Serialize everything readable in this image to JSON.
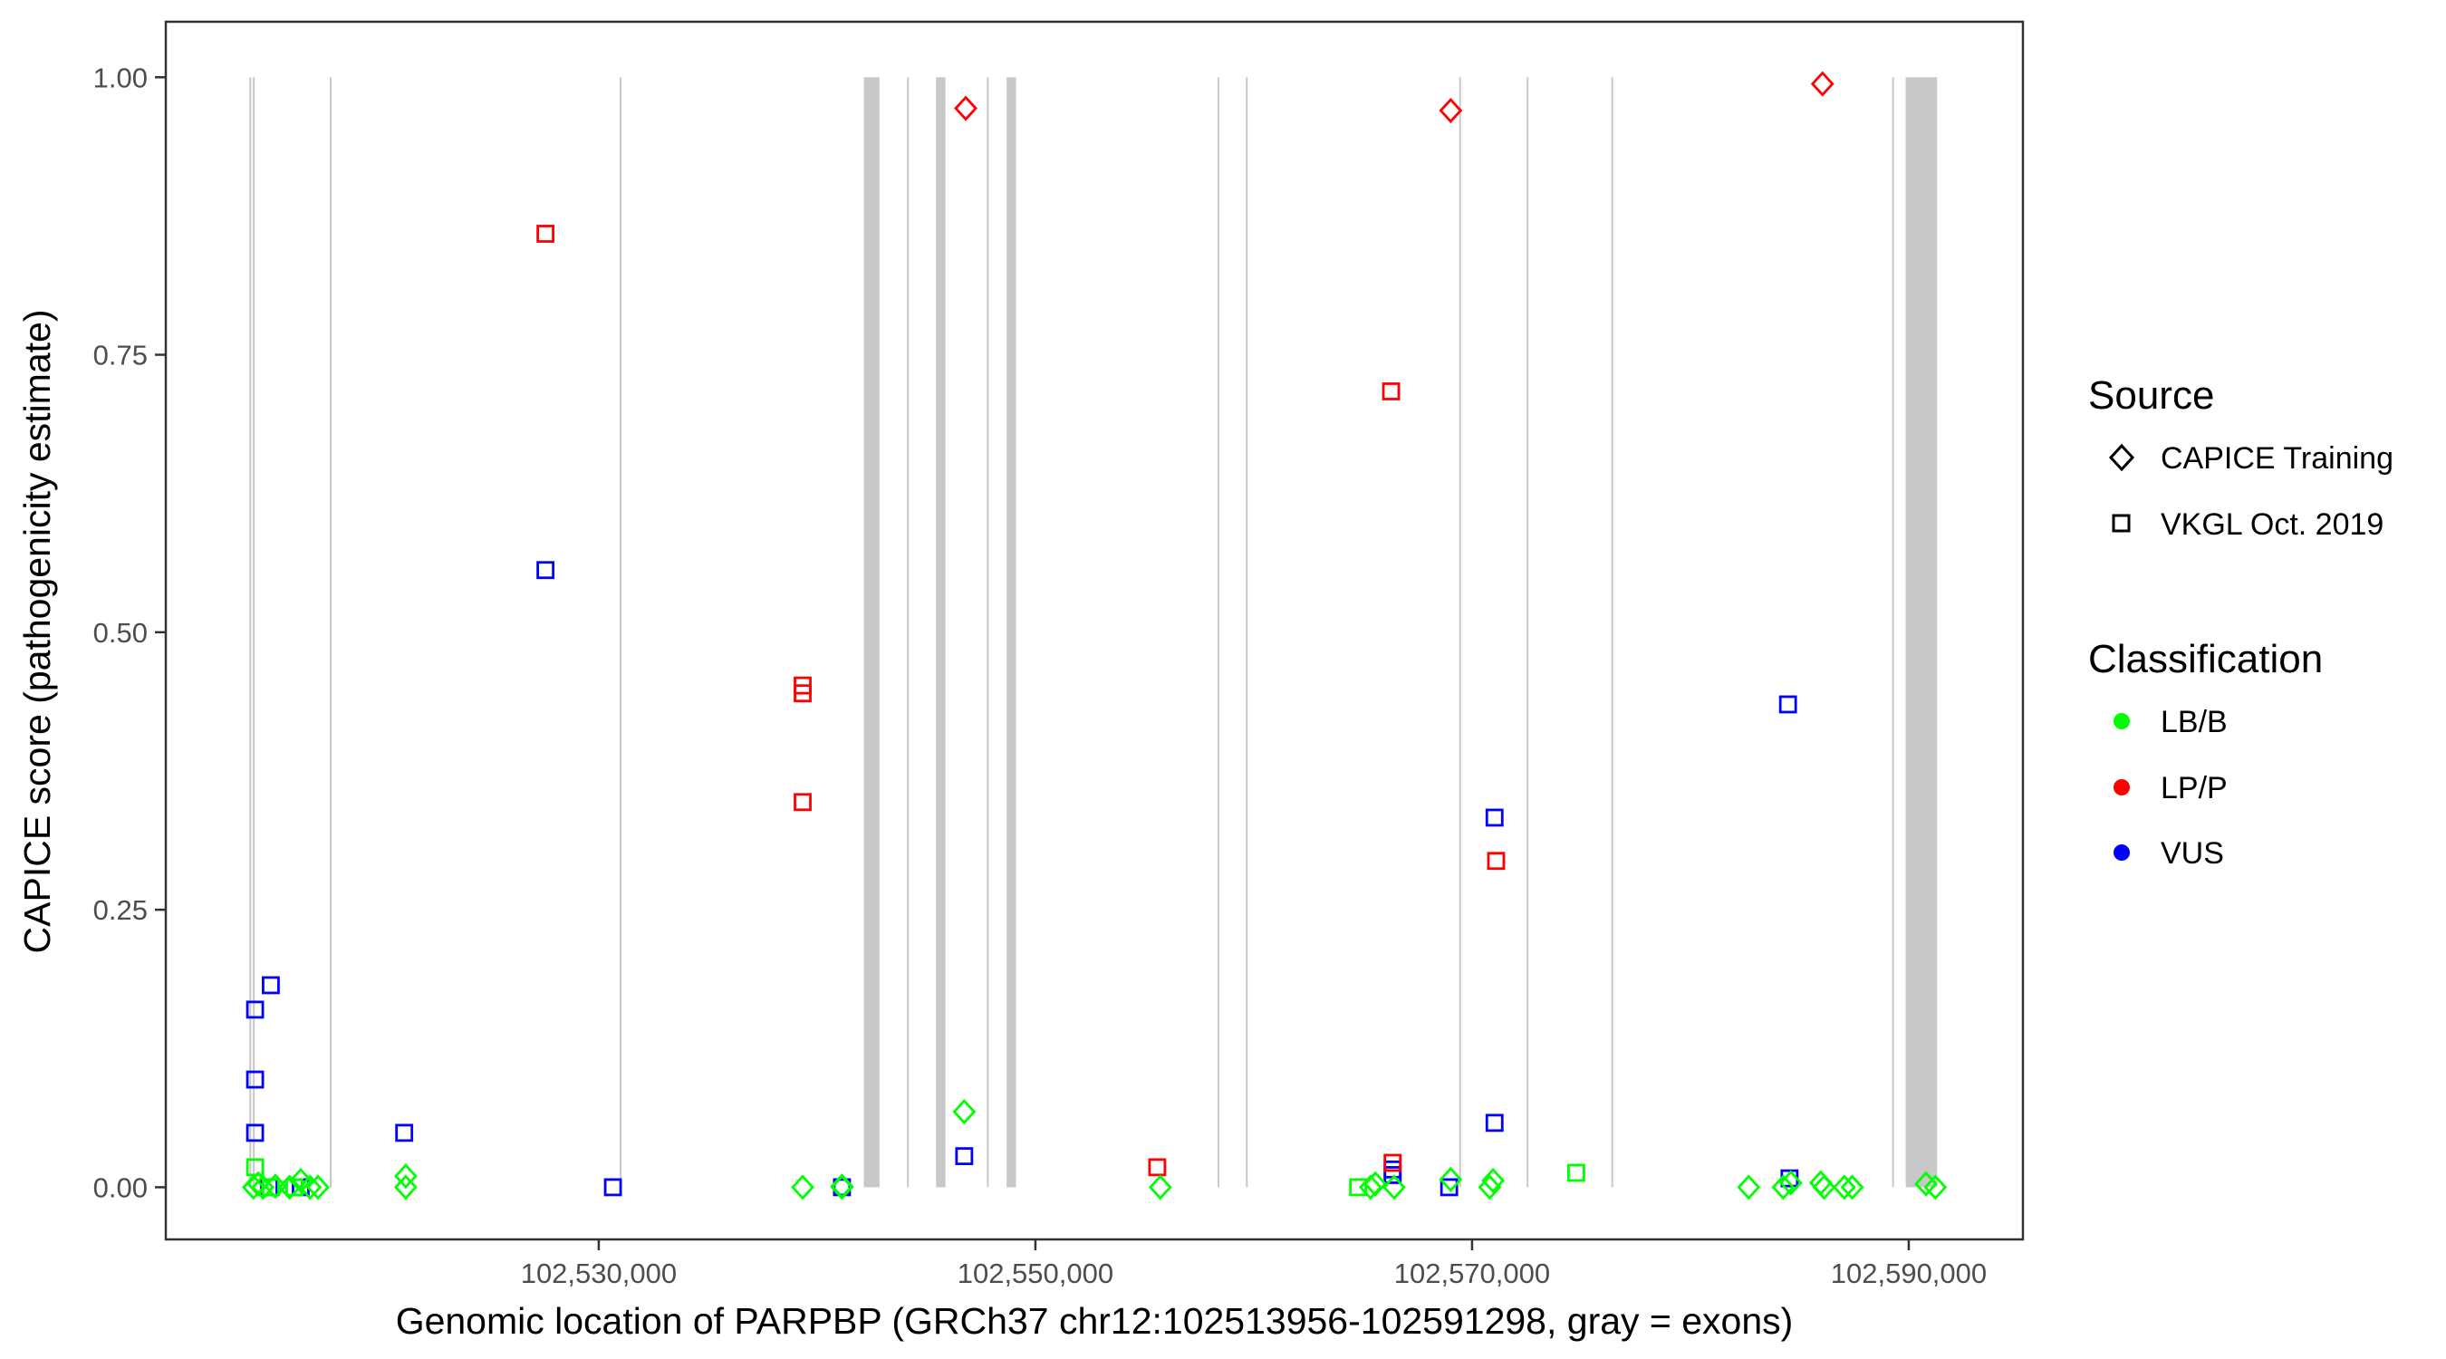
{
  "chart_data": {
    "type": "scatter",
    "xlabel": "Genomic location of PARPBP (GRCh37 chr12:102513956-102591298, gray = exons)",
    "ylabel": "CAPICE score (pathogenicity estimate)",
    "xlim": [
      102510170,
      102595230
    ],
    "ylim": [
      -0.047,
      1.05
    ],
    "x_ticks": [
      102530000,
      102550000,
      102570000,
      102590000
    ],
    "x_tick_labels": [
      "102,530,000",
      "102,550,000",
      "102,570,000",
      "102,590,000"
    ],
    "y_ticks": [
      0,
      0.25,
      0.5,
      0.75,
      1.0
    ],
    "y_tick_labels": [
      "0.00",
      "0.25",
      "0.50",
      "0.75",
      "1.00"
    ],
    "grid": false,
    "exon_color": "#c8c8c8",
    "exons": [
      [
        102514000,
        102514080
      ],
      [
        102514160,
        102514230
      ],
      [
        102517680,
        102517760
      ],
      [
        102530960,
        102531040
      ],
      [
        102542140,
        102542860
      ],
      [
        102544120,
        102544200
      ],
      [
        102545450,
        102545880
      ],
      [
        102547780,
        102547860
      ],
      [
        102548680,
        102549110
      ],
      [
        102558340,
        102558420
      ],
      [
        102559640,
        102559720
      ],
      [
        102569410,
        102569490
      ],
      [
        102572500,
        102572580
      ],
      [
        102576380,
        102576460
      ],
      [
        102589240,
        102589320
      ],
      [
        102589860,
        102591298
      ]
    ],
    "legend": {
      "placement": "right",
      "source": {
        "title": "Source",
        "items": [
          {
            "label": "CAPICE Training",
            "shape": "diamond"
          },
          {
            "label": "VKGL Oct. 2019",
            "shape": "square"
          }
        ]
      },
      "classification": {
        "title": "Classification",
        "items": [
          {
            "label": "LB/B",
            "color": "#00ff00"
          },
          {
            "label": "LP/P",
            "color": "#ff0000"
          },
          {
            "label": "VUS",
            "color": "#0000ff"
          }
        ]
      }
    },
    "series": [
      {
        "source": "VKGL Oct. 2019",
        "classification": "VUS",
        "points": [
          [
            102514260,
            0.16
          ],
          [
            102514260,
            0.097
          ],
          [
            102514260,
            0.049
          ],
          [
            102514980,
            0.182
          ],
          [
            102516350,
            0.0
          ],
          [
            102514900,
            0.0
          ],
          [
            102521090,
            0.049
          ],
          [
            102527560,
            0.556
          ],
          [
            102530650,
            0.0
          ],
          [
            102541140,
            0.0
          ],
          [
            102546740,
            0.028
          ],
          [
            102566360,
            0.016
          ],
          [
            102566360,
            0.011
          ],
          [
            102568950,
            0.0
          ],
          [
            102571030,
            0.333
          ],
          [
            102571030,
            0.058
          ],
          [
            102584470,
            0.435
          ],
          [
            102584540,
            0.008
          ]
        ]
      },
      {
        "source": "VKGL Oct. 2019",
        "classification": "LP/P",
        "points": [
          [
            102527560,
            0.859
          ],
          [
            102539340,
            0.452
          ],
          [
            102539340,
            0.445
          ],
          [
            102539340,
            0.347
          ],
          [
            102555580,
            0.018
          ],
          [
            102566290,
            0.717
          ],
          [
            102566360,
            0.022
          ],
          [
            102571100,
            0.294
          ]
        ]
      },
      {
        "source": "VKGL Oct. 2019",
        "classification": "LB/B",
        "points": [
          [
            102514260,
            0.018
          ],
          [
            102514980,
            0.0
          ],
          [
            102516060,
            0.0
          ],
          [
            102564780,
            0.0
          ],
          [
            102574770,
            0.013
          ]
        ]
      },
      {
        "source": "CAPICE Training",
        "classification": "LP/P",
        "points": [
          [
            102546810,
            0.972
          ],
          [
            102569020,
            0.97
          ],
          [
            102586050,
            0.994
          ]
        ]
      },
      {
        "source": "CAPICE Training",
        "classification": "LB/B",
        "points": [
          [
            102514190,
            0.0
          ],
          [
            102514400,
            0.003
          ],
          [
            102514620,
            0.0
          ],
          [
            102515190,
            0.001
          ],
          [
            102515840,
            0.0
          ],
          [
            102516350,
            0.006
          ],
          [
            102516780,
            0.0
          ],
          [
            102517140,
            0.0
          ],
          [
            102521160,
            0.01
          ],
          [
            102521160,
            0.0
          ],
          [
            102539340,
            0.0
          ],
          [
            102541140,
            0.001
          ],
          [
            102541140,
            0.0
          ],
          [
            102546740,
            0.068
          ],
          [
            102555720,
            0.0
          ],
          [
            102565350,
            0.0
          ],
          [
            102565570,
            0.003
          ],
          [
            102566430,
            0.0
          ],
          [
            102569020,
            0.007
          ],
          [
            102570810,
            0.0
          ],
          [
            102570960,
            0.006
          ],
          [
            102582670,
            0.0
          ],
          [
            102584250,
            0.0
          ],
          [
            102584600,
            0.004
          ],
          [
            102585970,
            0.004
          ],
          [
            102586120,
            0.0
          ],
          [
            102587050,
            0.0
          ],
          [
            102587410,
            0.0
          ],
          [
            102590790,
            0.003
          ],
          [
            102591220,
            0.0
          ]
        ]
      }
    ]
  }
}
